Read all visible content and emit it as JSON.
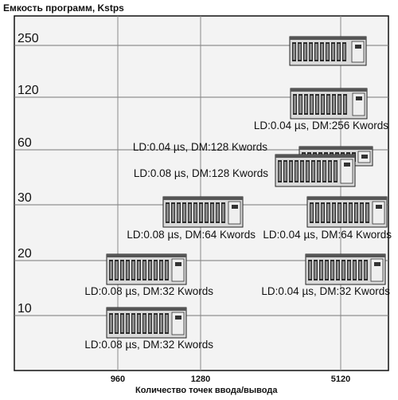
{
  "chart_data": {
    "type": "scatter",
    "ylabel": "Емкость программ, Kstps",
    "xlabel": "Количество точек ввода/вывода",
    "y_ticks": [
      10,
      20,
      30,
      60,
      120,
      250
    ],
    "x_ticks": [
      960,
      1280,
      5120
    ],
    "grid": true,
    "points": [
      {
        "x": 5120,
        "y": 250,
        "label": ""
      },
      {
        "x": 5120,
        "y": 120,
        "label": "LD:0.04 µs, DM:256 Kwords"
      },
      {
        "x": 5120,
        "y": 60,
        "label": "LD:0.04 µs, DM:128 Kwords"
      },
      {
        "x": 5120,
        "y": 60,
        "label": "LD:0.08 µs, DM:128 Kwords"
      },
      {
        "x": 1280,
        "y": 30,
        "label": "LD:0.08 µs, DM:64 Kwords"
      },
      {
        "x": 5120,
        "y": 30,
        "label": "LD:0.04 µs, DM:64 Kwords"
      },
      {
        "x": 960,
        "y": 20,
        "label": "LD:0.08 µs, DM:32 Kwords"
      },
      {
        "x": 5120,
        "y": 20,
        "label": "LD:0.04 µs, DM:32 Kwords"
      },
      {
        "x": 960,
        "y": 10,
        "label": "LD:0.08 µs, DM:32 Kwords"
      }
    ]
  }
}
